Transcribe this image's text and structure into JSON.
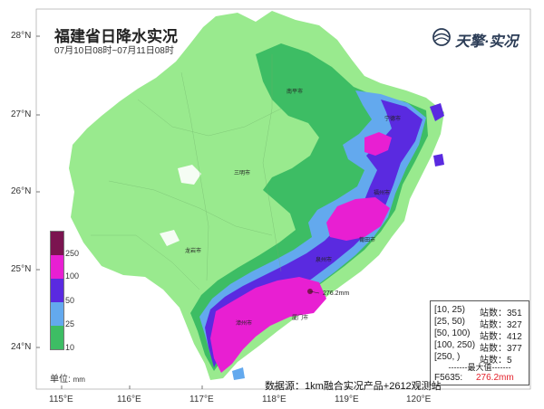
{
  "header": {
    "title": "福建省日降水实况",
    "subtitle": "07月10日08时~07月11日08时"
  },
  "logo": {
    "text": "天擎·实况",
    "icon": "globe-icon"
  },
  "axes": {
    "lat_labels": [
      "28°N",
      "27°N",
      "26°N",
      "25°N",
      "24°N"
    ],
    "lon_labels": [
      "115°E",
      "116°E",
      "117°E",
      "118°E",
      "119°E",
      "120°E"
    ]
  },
  "legend": {
    "thresholds": [
      "250",
      "100",
      "50",
      "25",
      "10"
    ],
    "colors": {
      "c250": "#7b1450",
      "c100": "#e81fd2",
      "c50": "#5a2ae0",
      "c25": "#63a9ee",
      "c10": "#3dbd64",
      "c0": "#99ea8e"
    },
    "unit_label": "单位:",
    "unit": "mm"
  },
  "cities": [
    "南平市",
    "宁德市",
    "三明市",
    "福州市",
    "莆田市",
    "泉州市",
    "龙岩市",
    "漳州市",
    "厦门市"
  ],
  "max_point": {
    "label": "276.2mm"
  },
  "stats": {
    "rows": [
      {
        "range": "[10, 25)",
        "count": "站数：351"
      },
      {
        "range": "[25, 50)",
        "count": "站数：327"
      },
      {
        "range": "[50, 100)",
        "count": "站数：412"
      },
      {
        "range": "[100, 250)",
        "count": "站数：377"
      },
      {
        "range": "[250, )",
        "count": "站数：5"
      }
    ],
    "max_title": "-------最大值-------",
    "max_station": "F5635:",
    "max_value": "276.2mm"
  },
  "source": "数据源：1km融合实况产品+2612观测站"
}
